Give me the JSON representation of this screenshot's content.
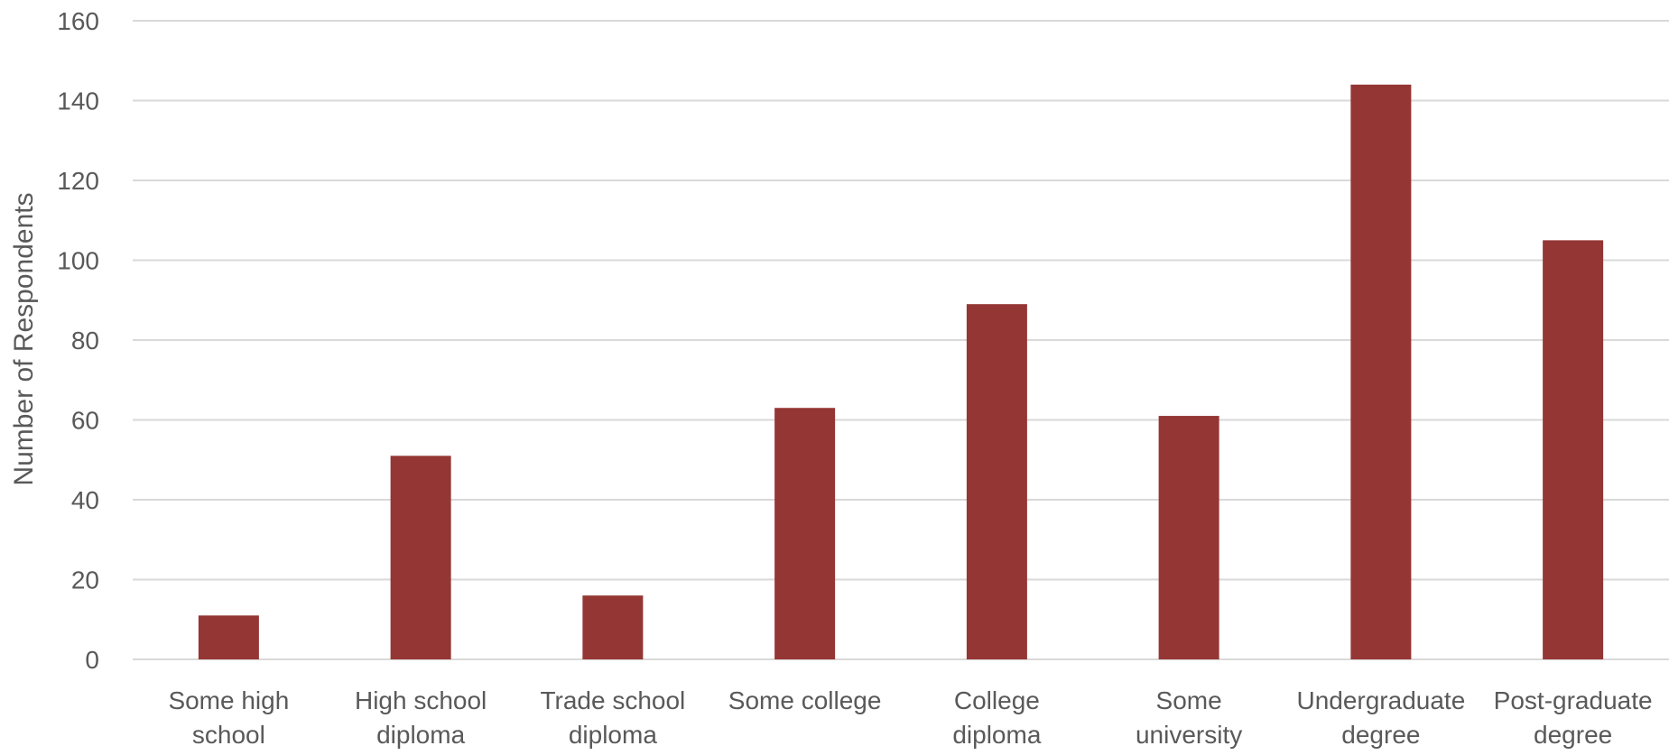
{
  "chart_data": {
    "type": "bar",
    "title": "",
    "xlabel": "",
    "ylabel": "Number of Respondents",
    "categories": [
      [
        "Some high",
        "school"
      ],
      [
        "High school",
        "diploma"
      ],
      [
        "Trade school",
        "diploma"
      ],
      [
        "Some college"
      ],
      [
        "College",
        "diploma"
      ],
      [
        "Some",
        "university"
      ],
      [
        "Undergraduate",
        "degree"
      ],
      [
        "Post-graduate",
        "degree"
      ]
    ],
    "values": [
      11,
      51,
      16,
      63,
      89,
      61,
      144,
      105
    ],
    "ylim": [
      0,
      160
    ],
    "yticks": [
      "0",
      "20",
      "40",
      "60",
      "80",
      "100",
      "120",
      "140",
      "160"
    ],
    "grid": true,
    "legend": "none",
    "bar_color": "#943634",
    "grid_color": "#d9d9d9",
    "text_color": "#595959"
  }
}
